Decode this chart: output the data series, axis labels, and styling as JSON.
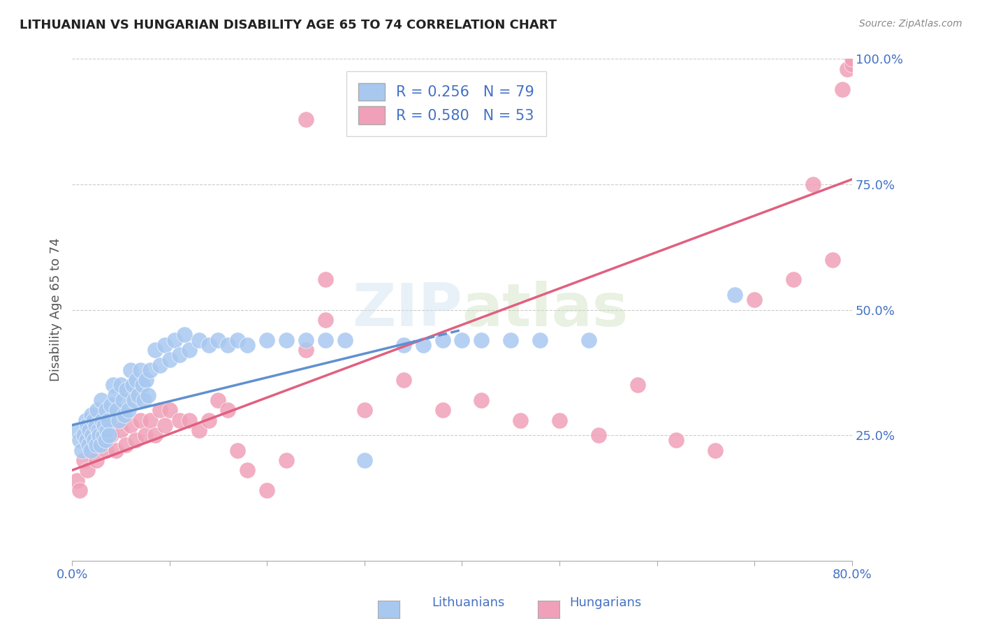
{
  "title": "LITHUANIAN VS HUNGARIAN DISABILITY AGE 65 TO 74 CORRELATION CHART",
  "source": "Source: ZipAtlas.com",
  "ylabel": "Disability Age 65 to 74",
  "xlim": [
    0.0,
    0.8
  ],
  "ylim": [
    0.0,
    1.0
  ],
  "xticks": [
    0.0,
    0.1,
    0.2,
    0.3,
    0.4,
    0.5,
    0.6,
    0.7,
    0.8
  ],
  "xticklabels": [
    "0.0%",
    "",
    "",
    "",
    "",
    "",
    "",
    "",
    "80.0%"
  ],
  "yticks": [
    0.0,
    0.25,
    0.5,
    0.75,
    1.0
  ],
  "yticklabels": [
    "",
    "25.0%",
    "50.0%",
    "75.0%",
    "100.0%"
  ],
  "legend_r1": "R = 0.256",
  "legend_n1": "N = 79",
  "legend_r2": "R = 0.580",
  "legend_n2": "N = 53",
  "blue_color": "#A8C8F0",
  "pink_color": "#F0A0B8",
  "blue_line_color": "#6090D0",
  "pink_line_color": "#E06080",
  "title_color": "#222222",
  "axis_label_color": "#4472C4",
  "source_color": "#888888",
  "lit_x": [
    0.005,
    0.008,
    0.01,
    0.012,
    0.014,
    0.015,
    0.016,
    0.017,
    0.018,
    0.019,
    0.02,
    0.021,
    0.022,
    0.023,
    0.024,
    0.025,
    0.026,
    0.027,
    0.028,
    0.029,
    0.03,
    0.031,
    0.032,
    0.033,
    0.034,
    0.035,
    0.036,
    0.037,
    0.038,
    0.04,
    0.042,
    0.044,
    0.046,
    0.048,
    0.05,
    0.052,
    0.054,
    0.056,
    0.058,
    0.06,
    0.062,
    0.064,
    0.066,
    0.068,
    0.07,
    0.072,
    0.074,
    0.076,
    0.078,
    0.08,
    0.085,
    0.09,
    0.095,
    0.1,
    0.105,
    0.11,
    0.115,
    0.12,
    0.13,
    0.14,
    0.15,
    0.16,
    0.17,
    0.18,
    0.2,
    0.22,
    0.24,
    0.26,
    0.28,
    0.3,
    0.34,
    0.36,
    0.38,
    0.4,
    0.42,
    0.45,
    0.48,
    0.53,
    0.68
  ],
  "lit_y": [
    0.26,
    0.24,
    0.22,
    0.25,
    0.28,
    0.24,
    0.27,
    0.23,
    0.26,
    0.22,
    0.29,
    0.25,
    0.28,
    0.24,
    0.27,
    0.23,
    0.3,
    0.26,
    0.25,
    0.23,
    0.32,
    0.28,
    0.25,
    0.27,
    0.24,
    0.3,
    0.26,
    0.28,
    0.25,
    0.31,
    0.35,
    0.33,
    0.3,
    0.28,
    0.35,
    0.32,
    0.29,
    0.34,
    0.3,
    0.38,
    0.35,
    0.32,
    0.36,
    0.33,
    0.38,
    0.35,
    0.32,
    0.36,
    0.33,
    0.38,
    0.42,
    0.39,
    0.43,
    0.4,
    0.44,
    0.41,
    0.45,
    0.42,
    0.44,
    0.43,
    0.44,
    0.43,
    0.44,
    0.43,
    0.44,
    0.44,
    0.44,
    0.44,
    0.44,
    0.2,
    0.43,
    0.43,
    0.44,
    0.44,
    0.44,
    0.44,
    0.44,
    0.44,
    0.53
  ],
  "hun_x": [
    0.005,
    0.008,
    0.012,
    0.016,
    0.02,
    0.025,
    0.03,
    0.035,
    0.04,
    0.045,
    0.05,
    0.055,
    0.06,
    0.065,
    0.07,
    0.075,
    0.08,
    0.085,
    0.09,
    0.095,
    0.1,
    0.11,
    0.12,
    0.13,
    0.14,
    0.15,
    0.16,
    0.17,
    0.18,
    0.2,
    0.22,
    0.24,
    0.26,
    0.3,
    0.34,
    0.38,
    0.42,
    0.46,
    0.5,
    0.54,
    0.58,
    0.62,
    0.66,
    0.7,
    0.74,
    0.76,
    0.78,
    0.79,
    0.795,
    0.8,
    0.8,
    0.24,
    0.26
  ],
  "hun_y": [
    0.16,
    0.14,
    0.2,
    0.18,
    0.22,
    0.2,
    0.25,
    0.22,
    0.25,
    0.22,
    0.26,
    0.23,
    0.27,
    0.24,
    0.28,
    0.25,
    0.28,
    0.25,
    0.3,
    0.27,
    0.3,
    0.28,
    0.28,
    0.26,
    0.28,
    0.32,
    0.3,
    0.22,
    0.18,
    0.14,
    0.2,
    0.42,
    0.56,
    0.3,
    0.36,
    0.3,
    0.32,
    0.28,
    0.28,
    0.25,
    0.35,
    0.24,
    0.22,
    0.52,
    0.56,
    0.75,
    0.6,
    0.94,
    0.98,
    0.99,
    1.0,
    0.88,
    0.48
  ],
  "lit_trend": [
    0.0,
    0.4,
    0.27,
    0.46
  ],
  "hun_trend": [
    0.0,
    0.8,
    0.18,
    0.76
  ]
}
